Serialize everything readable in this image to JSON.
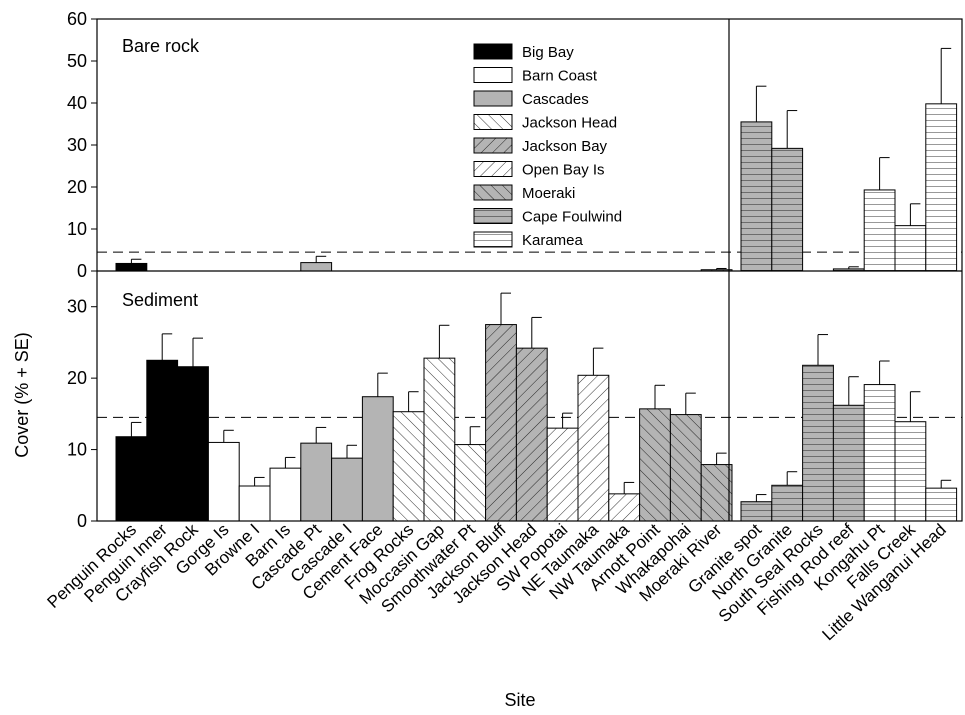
{
  "chart_data": {
    "type": "bar",
    "xlabel": "Site",
    "ylabel": "Cover (% + SE)",
    "panels": [
      {
        "label": "Bare rock",
        "ylim": [
          0,
          60
        ],
        "ticks": [
          0,
          10,
          20,
          30,
          40,
          50,
          60
        ],
        "reference_line": 4.5
      },
      {
        "label": "Sediment",
        "ylim": [
          0,
          35
        ],
        "ticks": [
          0,
          10,
          20,
          30
        ],
        "reference_line": 14.5
      }
    ],
    "legend": [
      {
        "name": "Big Bay",
        "pattern": "solid-black"
      },
      {
        "name": "Barn Coast",
        "pattern": "white"
      },
      {
        "name": "Cascades",
        "pattern": "gray"
      },
      {
        "name": "Jackson Head",
        "pattern": "diagonal-up"
      },
      {
        "name": "Jackson Bay",
        "pattern": "gray-diagonal-down"
      },
      {
        "name": "Open Bay Is",
        "pattern": "diagonal-down"
      },
      {
        "name": "Moeraki",
        "pattern": "gray-diagonal-up"
      },
      {
        "name": "Cape Foulwind",
        "pattern": "gray-horizontal"
      },
      {
        "name": "Karamea",
        "pattern": "horizontal"
      }
    ],
    "sites": [
      {
        "name": "Penguin Rocks",
        "region": "Big Bay",
        "bare": 1.8,
        "bare_se": 1.0,
        "sediment": 11.8,
        "sediment_se": 2.0
      },
      {
        "name": "Penguin Inner",
        "region": "Big Bay",
        "bare": 0,
        "bare_se": 0,
        "sediment": 22.5,
        "sediment_se": 3.7
      },
      {
        "name": "Crayfish Rock",
        "region": "Big Bay",
        "bare": 0,
        "bare_se": 0,
        "sediment": 21.6,
        "sediment_se": 4.0
      },
      {
        "name": "Gorge Is",
        "region": "Barn Coast",
        "bare": 0,
        "bare_se": 0,
        "sediment": 11.0,
        "sediment_se": 1.7
      },
      {
        "name": "Browne I",
        "region": "Barn Coast",
        "bare": 0,
        "bare_se": 0,
        "sediment": 4.9,
        "sediment_se": 1.2
      },
      {
        "name": "Barn Is",
        "region": "Barn Coast",
        "bare": 0,
        "bare_se": 0,
        "sediment": 7.4,
        "sediment_se": 1.5
      },
      {
        "name": "Cascade Pt",
        "region": "Cascades",
        "bare": 2.0,
        "bare_se": 1.5,
        "sediment": 10.9,
        "sediment_se": 2.2
      },
      {
        "name": "Cascade I",
        "region": "Cascades",
        "bare": 0,
        "bare_se": 0,
        "sediment": 8.8,
        "sediment_se": 1.8
      },
      {
        "name": "Cement Face",
        "region": "Cascades",
        "bare": 0,
        "bare_se": 0,
        "sediment": 17.4,
        "sediment_se": 3.3
      },
      {
        "name": "Frog Rocks",
        "region": "Jackson Head",
        "bare": 0,
        "bare_se": 0,
        "sediment": 15.3,
        "sediment_se": 2.8
      },
      {
        "name": "Moccasin Gap",
        "region": "Jackson Head",
        "bare": 0,
        "bare_se": 0,
        "sediment": 22.8,
        "sediment_se": 4.6
      },
      {
        "name": "Smoothwater Pt",
        "region": "Jackson Head",
        "bare": 0,
        "bare_se": 0,
        "sediment": 10.7,
        "sediment_se": 2.5
      },
      {
        "name": "Jackson Bluff",
        "region": "Jackson Bay",
        "bare": 0,
        "bare_se": 0,
        "sediment": 27.5,
        "sediment_se": 4.4
      },
      {
        "name": "Jackson Head",
        "region": "Jackson Bay",
        "bare": 0,
        "bare_se": 0,
        "sediment": 24.2,
        "sediment_se": 4.3
      },
      {
        "name": "SW Popotai",
        "region": "Open Bay Is",
        "bare": 0,
        "bare_se": 0,
        "sediment": 13.0,
        "sediment_se": 2.1
      },
      {
        "name": "NE Taumaka",
        "region": "Open Bay Is",
        "bare": 0,
        "bare_se": 0,
        "sediment": 20.4,
        "sediment_se": 3.8
      },
      {
        "name": "NW Taumaka",
        "region": "Open Bay Is",
        "bare": 0,
        "bare_se": 0,
        "sediment": 3.8,
        "sediment_se": 1.6
      },
      {
        "name": "Arnott Point",
        "region": "Moeraki",
        "bare": 0,
        "bare_se": 0,
        "sediment": 15.7,
        "sediment_se": 3.3
      },
      {
        "name": "Whakapohai",
        "region": "Moeraki",
        "bare": 0,
        "bare_se": 0,
        "sediment": 14.9,
        "sediment_se": 3.0
      },
      {
        "name": "Moeraki River",
        "region": "Moeraki",
        "bare": 0.3,
        "bare_se": 0.3,
        "sediment": 7.9,
        "sediment_se": 1.6
      },
      {
        "name": "Granite spot",
        "region": "Cape Foulwind",
        "bare": 35.5,
        "bare_se": 8.5,
        "sediment": 2.7,
        "sediment_se": 1.0
      },
      {
        "name": "North Granite",
        "region": "Cape Foulwind",
        "bare": 29.2,
        "bare_se": 9.0,
        "sediment": 5.0,
        "sediment_se": 1.9
      },
      {
        "name": "South Seal Rocks",
        "region": "Cape Foulwind",
        "bare": 0,
        "bare_se": 0,
        "sediment": 21.8,
        "sediment_se": 4.3
      },
      {
        "name": "Fishing Rod reef",
        "region": "Cape Foulwind",
        "bare": 0.5,
        "bare_se": 0.5,
        "sediment": 16.2,
        "sediment_se": 4.0
      },
      {
        "name": "Kongahu Pt",
        "region": "Karamea",
        "bare": 19.3,
        "bare_se": 7.7,
        "sediment": 19.1,
        "sediment_se": 3.3
      },
      {
        "name": "Falls Creek",
        "region": "Karamea",
        "bare": 10.8,
        "bare_se": 5.2,
        "sediment": 13.9,
        "sediment_se": 4.2
      },
      {
        "name": "Little Wanganui Head",
        "region": "Karamea",
        "bare": 39.8,
        "bare_se": 13.2,
        "sediment": 4.6,
        "sediment_se": 1.1
      }
    ]
  }
}
